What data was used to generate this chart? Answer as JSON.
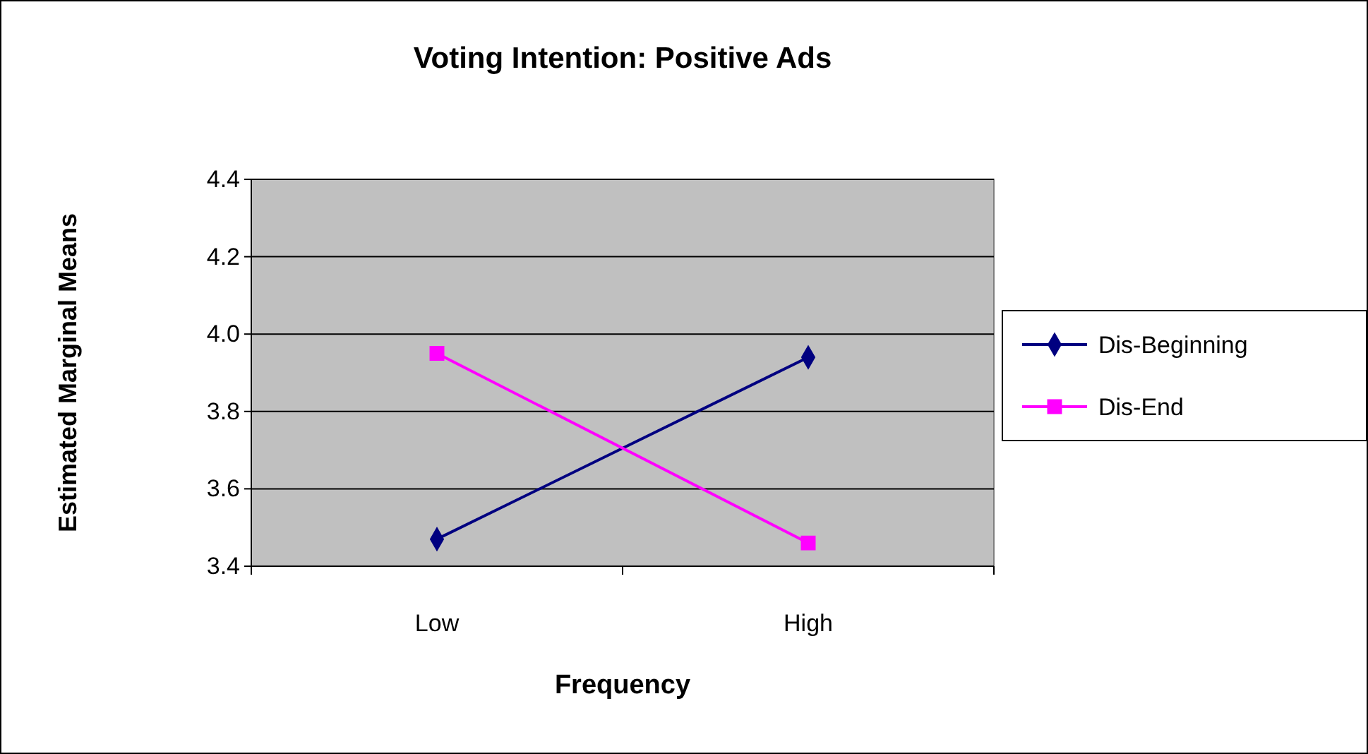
{
  "chart_data": {
    "type": "line",
    "title": "Voting Intention: Positive Ads",
    "xlabel": "Frequency",
    "ylabel": "Estimated Marginal Means",
    "categories": [
      "Low",
      "High"
    ],
    "series": [
      {
        "name": "Dis-Beginning",
        "color": "#000080",
        "marker": "diamond",
        "values": [
          3.47,
          3.94
        ]
      },
      {
        "name": "Dis-End",
        "color": "#ff00ff",
        "marker": "square",
        "values": [
          3.95,
          3.46
        ]
      }
    ],
    "ylim": [
      3.4,
      4.4
    ],
    "yticks": [
      {
        "value": 3.4,
        "label": "3.4"
      },
      {
        "value": 3.6,
        "label": "3.6"
      },
      {
        "value": 3.8,
        "label": "3.8"
      },
      {
        "value": 4.0,
        "label": "4.0"
      },
      {
        "value": 4.2,
        "label": "4.2"
      },
      {
        "value": 4.4,
        "label": "4.4"
      }
    ],
    "grid": "y",
    "legend": "right",
    "line_style": "solid"
  }
}
